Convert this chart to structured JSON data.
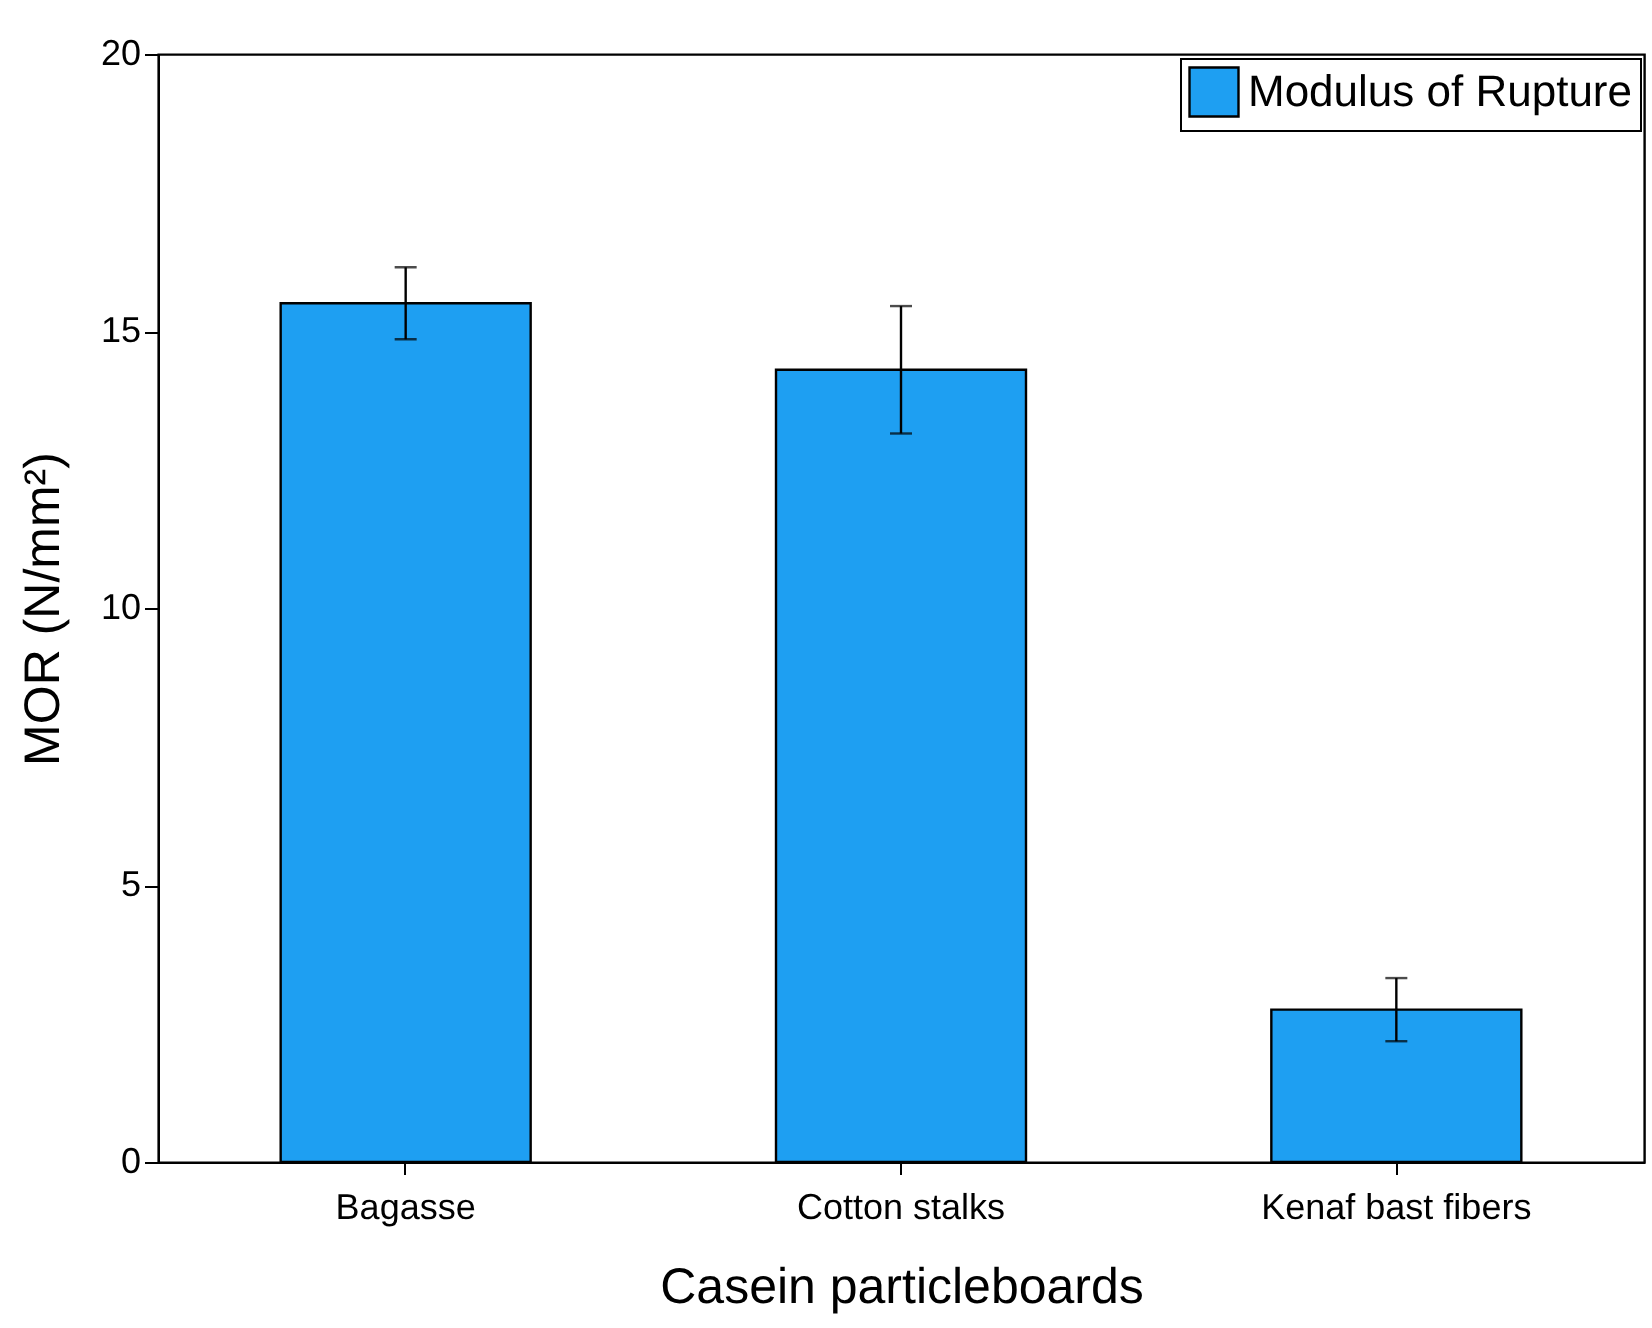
{
  "chart_data": {
    "type": "bar",
    "xlabel": "Casein particleboards",
    "ylabel": "MOR (N/mm²)",
    "categories": [
      "Bagasse",
      "Cotton stalks",
      "Kenaf bast fibers"
    ],
    "series": [
      {
        "name": "Modulus of Rupture",
        "color": "#1e9ff2",
        "values": [
          15.5,
          14.3,
          2.75
        ],
        "errors": [
          0.65,
          1.15,
          0.57
        ]
      }
    ],
    "ylim": [
      0,
      20
    ],
    "yticks": [
      0,
      5,
      10,
      15,
      20
    ],
    "legend": "top right",
    "grid": false
  }
}
